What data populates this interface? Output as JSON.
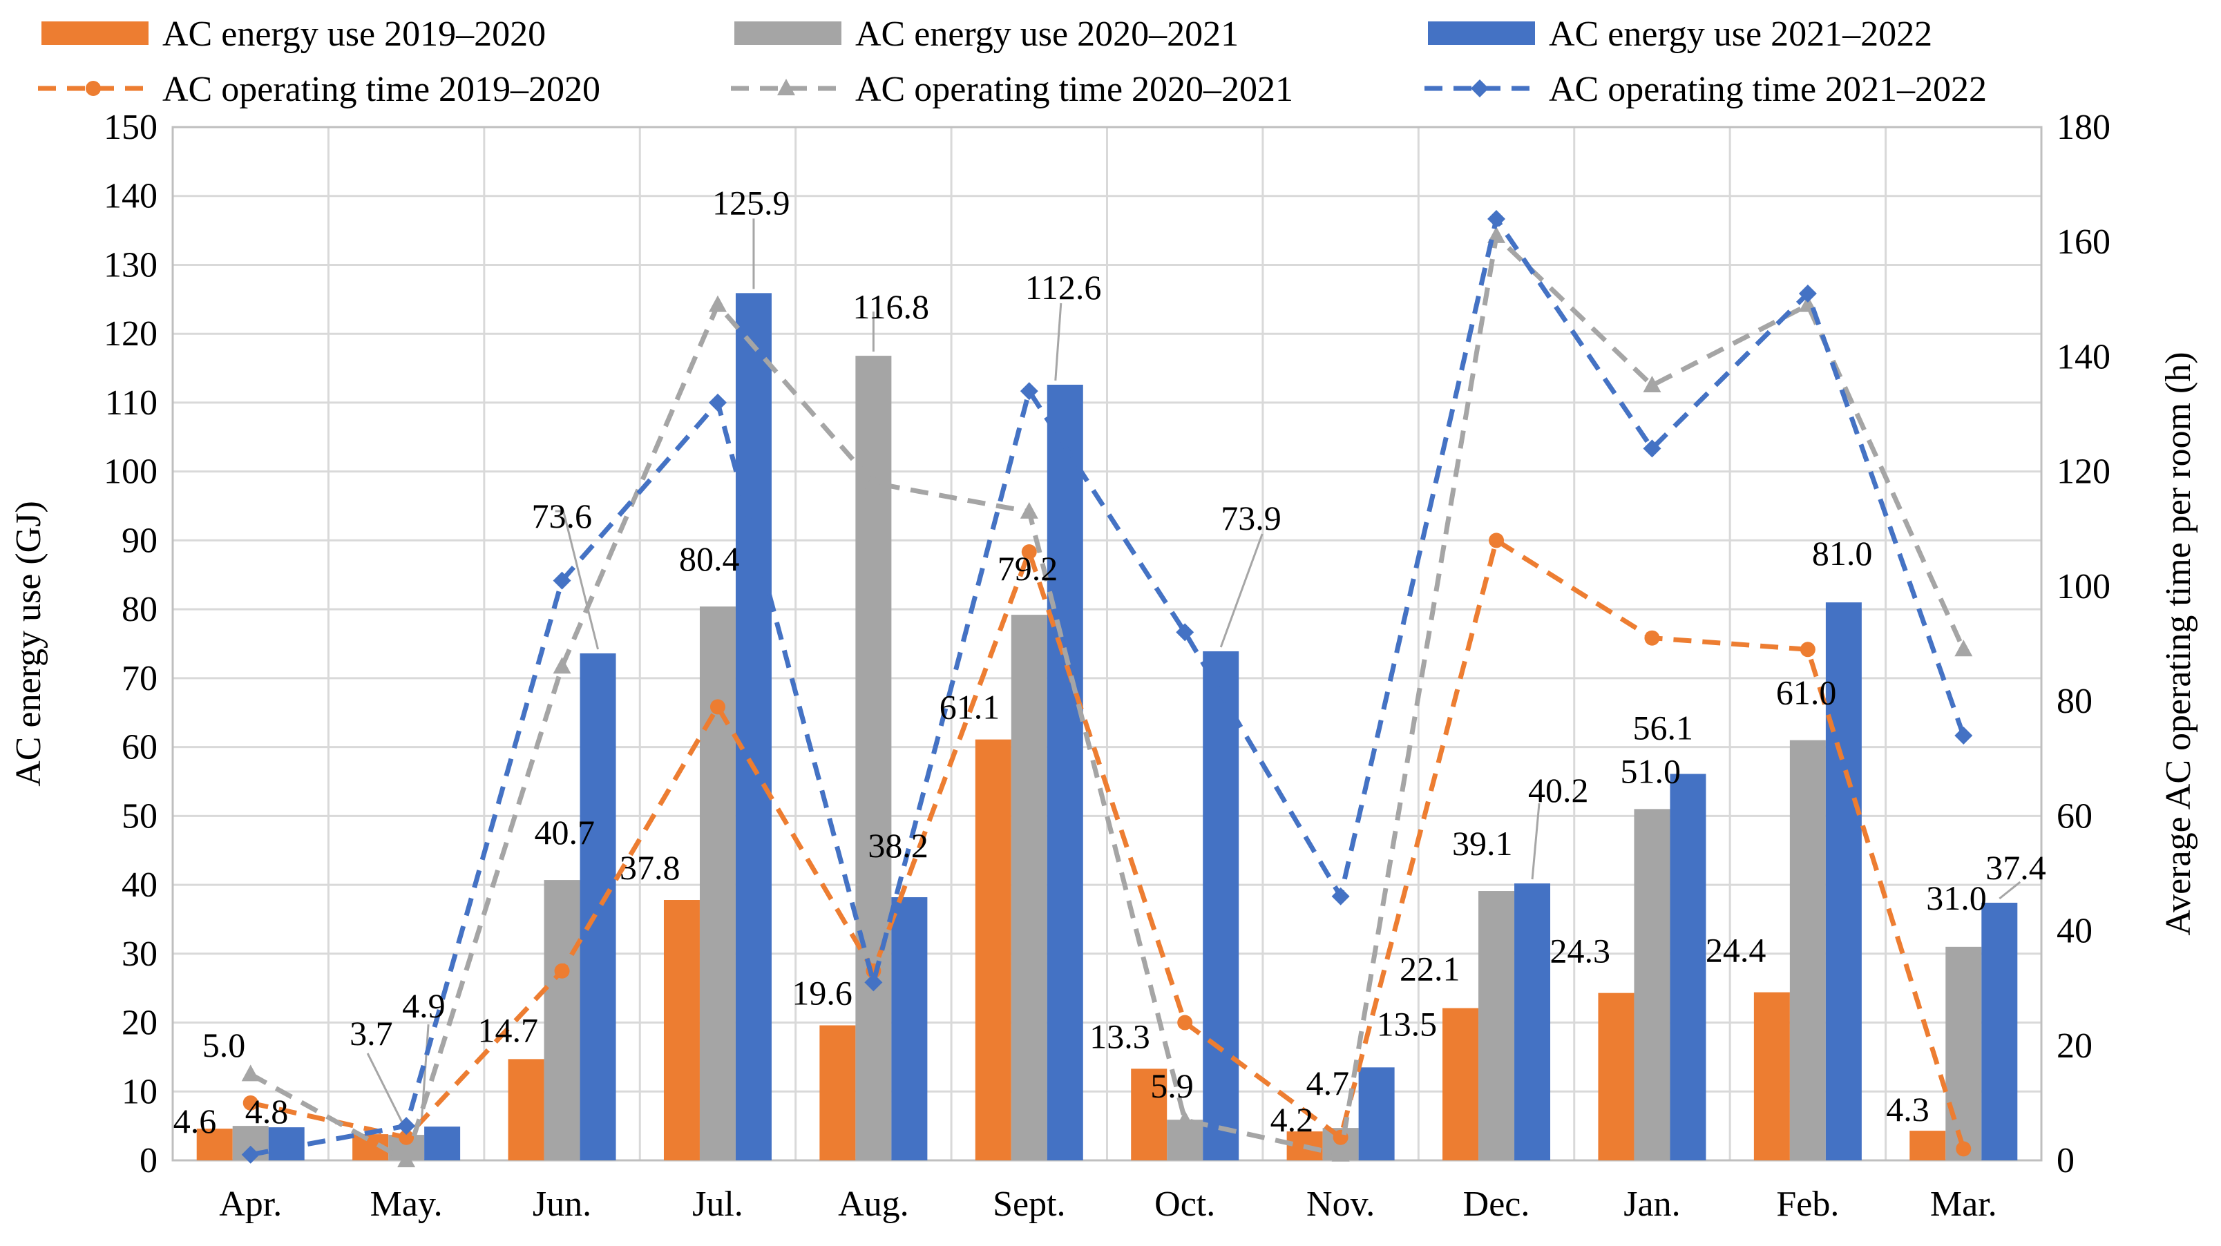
{
  "chart_data": {
    "type": "bar",
    "categories": [
      "Apr.",
      "May.",
      "Jun.",
      "Jul.",
      "Aug.",
      "Sept.",
      "Oct.",
      "Nov.",
      "Dec.",
      "Jan.",
      "Feb.",
      "Mar."
    ],
    "series": [
      {
        "name": "AC energy use 2019–2020",
        "kind": "bar",
        "axis": "left",
        "color": "#ED7D31",
        "values": [
          4.6,
          3.8,
          14.7,
          37.8,
          19.6,
          61.1,
          13.3,
          4.2,
          22.1,
          24.3,
          24.4,
          4.3
        ],
        "labels": [
          "4.6",
          "",
          "14.7",
          "37.8",
          "19.6",
          "61.1",
          "13.3",
          "4.2",
          "22.1",
          "24.3",
          "24.4",
          "4.3"
        ]
      },
      {
        "name": "AC energy use 2020–2021",
        "kind": "bar",
        "axis": "left",
        "color": "#A5A5A5",
        "values": [
          5.0,
          3.7,
          40.7,
          80.4,
          116.8,
          79.2,
          5.9,
          4.7,
          39.1,
          51.0,
          61.0,
          31.0
        ],
        "labels": [
          "5.0",
          "3.7",
          "40.7",
          "80.4",
          "116.8",
          "79.2",
          "5.9",
          "4.7",
          "39.1",
          "51.0",
          "61.0",
          "31.0"
        ]
      },
      {
        "name": "AC energy use 2021–2022",
        "kind": "bar",
        "axis": "left",
        "color": "#4472C4",
        "values": [
          4.8,
          4.9,
          73.6,
          125.9,
          38.2,
          112.6,
          73.9,
          13.5,
          40.2,
          56.1,
          81.0,
          37.4
        ],
        "labels": [
          "4.8",
          "4.9",
          "73.6",
          "125.9",
          "38.2",
          "112.6",
          "73.9",
          "13.5",
          "40.2",
          "56.1",
          "81.0",
          "37.4"
        ]
      },
      {
        "name": "AC operating time 2019–2020",
        "kind": "line",
        "axis": "right",
        "color": "#ED7D31",
        "marker": "circle",
        "values": [
          10,
          4,
          33,
          79,
          33,
          106,
          24,
          4,
          108,
          91,
          89,
          2
        ]
      },
      {
        "name": "AC operating time 2020–2021",
        "kind": "line",
        "axis": "right",
        "color": "#A5A5A5",
        "marker": "triangle",
        "values": [
          15,
          0,
          86,
          149,
          118,
          113,
          7,
          1,
          161,
          135,
          149,
          89
        ]
      },
      {
        "name": "AC operating time 2021–2022",
        "kind": "line",
        "axis": "right",
        "color": "#4472C4",
        "marker": "diamond",
        "values": [
          1,
          6,
          101,
          132,
          31,
          134,
          92,
          46,
          164,
          124,
          151,
          74
        ]
      }
    ],
    "title": "",
    "xlabel": "",
    "ylabel": "AC energy use (GJ)",
    "y2label": "Average AC operating time per room (h)",
    "ylim": [
      0,
      150
    ],
    "y2lim": [
      0,
      180
    ],
    "yticks": [
      "0",
      "10",
      "20",
      "30",
      "40",
      "50",
      "60",
      "70",
      "80",
      "90",
      "100",
      "110",
      "120",
      "130",
      "140",
      "150"
    ],
    "y2ticks": [
      "0",
      "20",
      "40",
      "60",
      "80",
      "100",
      "120",
      "140",
      "160",
      "180"
    ],
    "grid": true,
    "legend": "top"
  }
}
